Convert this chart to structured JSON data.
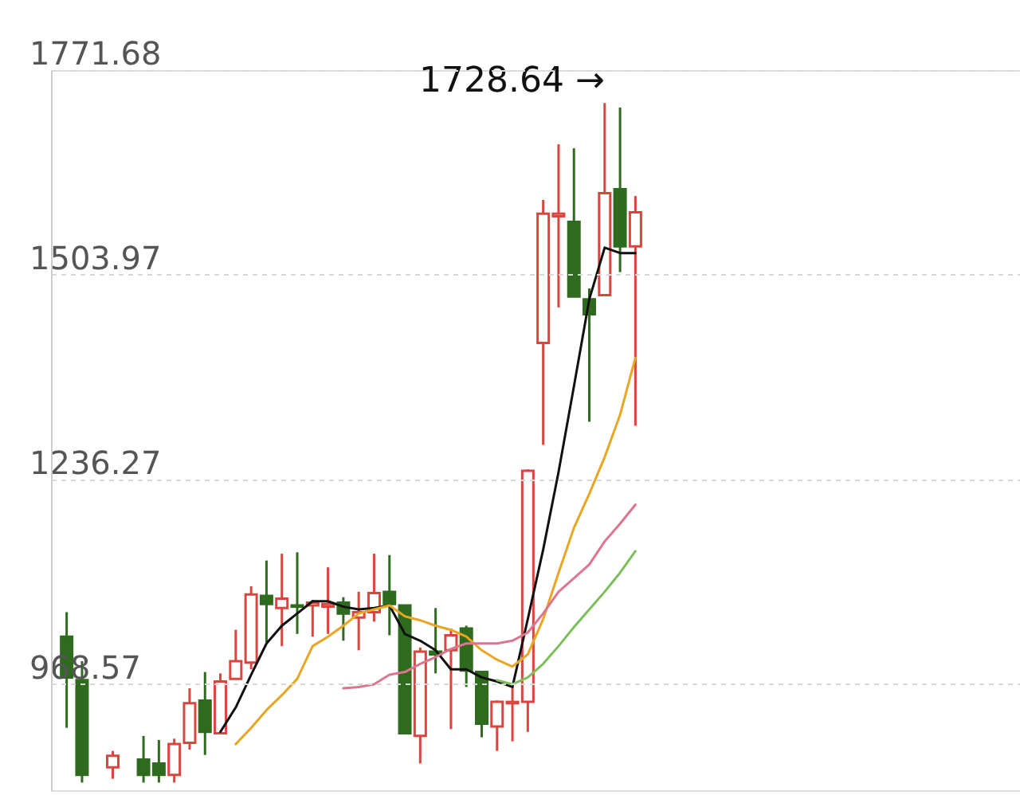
{
  "chart_data": {
    "type": "candlestick",
    "categories": [
      null,
      null,
      null,
      null,
      null,
      null,
      null,
      null,
      null,
      null,
      null,
      null,
      null,
      null,
      null,
      null,
      null,
      null,
      null,
      null,
      null,
      null,
      null,
      null,
      null,
      null,
      null,
      null,
      null,
      null,
      null,
      null,
      null,
      null,
      null,
      null,
      null,
      null,
      null,
      null,
      null,
      null,
      null,
      null,
      null,
      null,
      null,
      null,
      null,
      null,
      null,
      null,
      null,
      null,
      null,
      null,
      null,
      null,
      null,
      null,
      null,
      null
    ],
    "ohlc": [
      [
        1030.8,
        1062.9,
        911.6,
        977.5
      ],
      [
        973.9,
        998.8,
        840,
        850
      ],
      null,
      [
        860,
        881.4,
        845,
        875
      ],
      null,
      [
        870,
        901.0,
        840,
        850
      ],
      [
        865,
        895.6,
        840,
        850
      ],
      [
        850,
        897.4,
        840,
        890.3
      ],
      [
        892.1,
        963.3,
        883.2,
        943.7
      ],
      [
        947.3,
        984.6,
        876.1,
        906.3
      ],
      [
        904.5,
        982.8,
        904.5,
        972.2
      ],
      [
        975.7,
        1039.7,
        975.7,
        998.8
      ],
      [
        997.0,
        1096.7,
        988.1,
        1086.0
      ],
      [
        1084.2,
        1130.4,
        1023.7,
        1073.5
      ],
      [
        1068.2,
        1139.3,
        1018.4,
        1080.6
      ],
      [
        1071.7,
        1141.1,
        1034.4,
        1070.0
      ],
      [
        1071.7,
        1078.9,
        1030.8,
        1075.3
      ],
      [
        1070.0,
        1121.5,
        1034.4,
        1073.5
      ],
      [
        1075.3,
        1082.4,
        1025.5,
        1061.1
      ],
      [
        1055.7,
        1089.5,
        1013.0,
        1062.9
      ],
      [
        1062.9,
        1139.3,
        1050.4,
        1087.8
      ],
      [
        1089.5,
        1137.5,
        1032.6,
        1073.5
      ],
      [
        1071.7,
        1071.7,
        904.5,
        904.5
      ],
      [
        901.0,
        1016.6,
        865,
        1011.3
      ],
      [
        1011.3,
        1068.2,
        982.8,
        1007.7
      ],
      [
        1013.0,
        1041.5,
        909.9,
        1032.6
      ],
      [
        1041.5,
        1045.1,
        965.0,
        986.4
      ],
      [
        984.6,
        984.6,
        899.2,
        917.0
      ],
      [
        913.4,
        947.3,
        881.4,
        945.5
      ],
      [
        943.7,
        965.0,
        893.9,
        945.5
      ],
      [
        945.5,
        1249.6,
        906.3,
        1247.8
      ],
      [
        1415.0,
        1601.8,
        1281.6,
        1584.0
      ],
      [
        1580.5,
        1674.7,
        1461.3,
        1584.0
      ],
      [
        1573.3,
        1669.4,
        1475.5,
        1475.5
      ],
      [
        1472.0,
        1486.2,
        1311.9,
        1452.4
      ],
      [
        1477.3,
        1728.64,
        1477.3,
        1610.7
      ],
      [
        1616.0,
        1722.7,
        1507.5,
        1541.3
      ],
      [
        1541.3,
        1607.1,
        1306.5,
        1585.8
      ],
      null,
      null,
      null,
      null,
      null,
      null,
      null,
      null,
      null,
      null,
      null,
      null,
      null,
      null,
      null,
      null,
      null,
      null,
      null,
      null,
      null,
      null,
      null,
      null
    ],
    "colors": [
      "#2f6b1f",
      "#2f6b1f",
      null,
      "#d9453f",
      null,
      "#2f6b1f",
      "#2f6b1f",
      "#d9453f",
      "#d9453f",
      "#2f6b1f",
      "#d9453f",
      "#d9453f",
      "#d9453f",
      "#2f6b1f",
      "#d9453f",
      "#2f6b1f",
      "#d9453f",
      "#d9453f",
      "#2f6b1f",
      "#d9453f",
      "#d9453f",
      "#2f6b1f",
      "#2f6b1f",
      "#d9453f",
      "#2f6b1f",
      "#d9453f",
      "#2f6b1f",
      "#2f6b1f",
      "#d9453f",
      "#d9453f",
      "#d9453f",
      "#d9453f",
      "#d9453f",
      "#2f6b1f",
      "#2f6b1f",
      "#d9453f",
      "#2f6b1f",
      "#d9453f",
      null,
      null,
      null,
      null,
      null,
      null,
      null,
      null,
      null,
      null,
      null,
      null,
      null,
      null,
      null,
      null,
      null,
      null,
      null,
      null,
      null,
      null,
      null,
      null
    ],
    "series": [
      {
        "type": "line",
        "color": "#111111",
        "values": [
          null,
          null,
          null,
          null,
          null,
          null,
          null,
          null,
          null,
          null,
          906.3,
          938.3,
          981.0,
          1021.9,
          1045.1,
          1061.1,
          1077.1,
          1077.1,
          1070.0,
          1066.4,
          1068.2,
          1071.7,
          1034.4,
          1025.5,
          1013.0,
          988.1,
          988.1,
          977.5,
          972.2,
          965.0,
          1054.0,
          1144.7,
          1246.1,
          1358.1,
          1472.0,
          1539.5,
          1532.4,
          1532.4,
          null,
          null,
          null,
          null,
          null,
          null,
          null,
          null,
          null,
          null,
          null,
          null,
          null,
          null,
          null,
          null,
          null,
          null,
          null,
          null,
          null,
          null,
          null,
          null
        ]
      },
      {
        "type": "line",
        "color": "#e8a623",
        "values": [
          null,
          null,
          null,
          null,
          null,
          null,
          null,
          null,
          null,
          null,
          null,
          890.3,
          911.6,
          934.8,
          954.3,
          975.7,
          1018.4,
          1030.8,
          1045.1,
          1061.1,
          1066.4,
          1071.7,
          1057.5,
          1052.2,
          1045.1,
          1039.7,
          1030.8,
          1013.0,
          1000.6,
          991.7,
          1007.7,
          1053.9,
          1114.4,
          1173.1,
          1217.6,
          1265.6,
          1320.8,
          1395.4,
          null,
          null,
          null,
          null,
          null,
          null,
          null,
          null,
          null,
          null,
          null,
          null,
          null,
          null,
          null,
          null,
          null,
          null,
          null,
          null,
          null,
          null,
          null,
          null
        ]
      },
      {
        "type": "line",
        "color": "#dc7690",
        "values": [
          null,
          null,
          null,
          null,
          null,
          null,
          null,
          null,
          null,
          null,
          null,
          null,
          null,
          null,
          null,
          null,
          null,
          null,
          963.3,
          965.0,
          968.6,
          981.0,
          984.6,
          995.3,
          1004.2,
          1014.8,
          1021.9,
          1021.9,
          1021.9,
          1025.5,
          1036.2,
          1061.1,
          1089.5,
          1107.3,
          1125.2,
          1155.4,
          1178.5,
          1203.4,
          null,
          null,
          null,
          null,
          null,
          null,
          null,
          null,
          null,
          null,
          null,
          null,
          null,
          null,
          null,
          null,
          null,
          null,
          null,
          null,
          null,
          null,
          null,
          null
        ]
      },
      {
        "type": "line",
        "color": "#7cbf5a",
        "values": [
          null,
          null,
          null,
          null,
          null,
          null,
          null,
          null,
          null,
          null,
          null,
          null,
          null,
          null,
          null,
          null,
          null,
          null,
          null,
          null,
          null,
          null,
          null,
          null,
          null,
          null,
          null,
          null,
          973.9,
          968.6,
          977.5,
          995.3,
          1018.4,
          1043.3,
          1066.4,
          1089.5,
          1114.4,
          1142.6,
          null,
          null,
          null,
          null,
          null,
          null,
          null,
          null,
          null,
          null,
          null,
          null,
          null,
          null,
          null,
          null,
          null,
          null,
          null,
          null,
          null,
          null,
          null,
          null
        ]
      }
    ],
    "ylim": [
      830,
      1771.68
    ],
    "yticks": [
      968.57,
      1236.27,
      1503.97,
      1771.68
    ],
    "grid": "y",
    "tick_labels": "y",
    "annotations": [
      "1728.64 →"
    ]
  }
}
